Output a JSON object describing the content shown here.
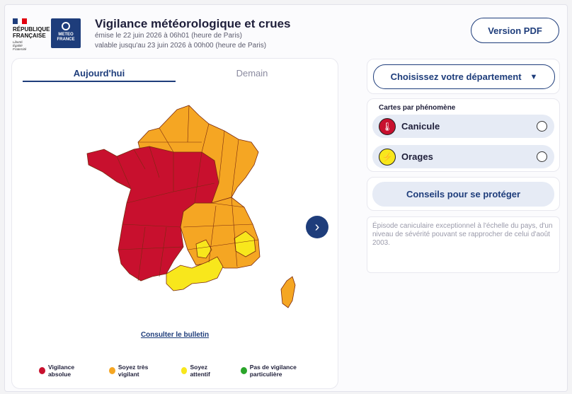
{
  "header": {
    "gov_name_lines": [
      "RÉPUBLIQUE",
      "FRANÇAISE"
    ],
    "gov_motto_lines": [
      "Liberté",
      "Égalité",
      "Fraternité"
    ],
    "mf_lines": [
      "METEO",
      "FRANCE"
    ],
    "title": "Vigilance météorologique et crues",
    "issued": "émise le 22 juin 2026 à 06h01 (heure de Paris)",
    "valid_until": "valable jusqu'au 23 juin 2026 à 00h00 (heure de Paris)",
    "pdf_button": "Version PDF"
  },
  "map_panel": {
    "tabs": [
      {
        "label": "Aujourd'hui",
        "active": true
      },
      {
        "label": "Demain",
        "active": false
      }
    ],
    "next_button_icon": "chevron-right-icon",
    "bulletin_link": "Consulter le bulletin",
    "legend": [
      {
        "label": "Vigilance absolue",
        "color": "#c8102e"
      },
      {
        "label": "Soyez très vigilant",
        "color": "#f5a623"
      },
      {
        "label": "Soyez attentif",
        "color": "#f8e71c"
      },
      {
        "label": "Pas de vigilance particulière",
        "color": "#2aa52a"
      }
    ],
    "zone_colors": {
      "red": "#c8102e",
      "orange": "#f5a623",
      "yellow": "#f8e71c",
      "border": "#7a2a10"
    }
  },
  "sidebar": {
    "department_button": "Choisissez votre département",
    "phenomena_title": "Cartes par phénomène",
    "phenomena": [
      {
        "label": "Canicule",
        "icon": "thermometer-icon",
        "icon_color": "#c8102e"
      },
      {
        "label": "Orages",
        "icon": "lightning-icon",
        "icon_color": "#f8e71c"
      }
    ],
    "advice_button": "Conseils pour se protéger",
    "description": "Épisode caniculaire exceptionnel à l'échelle du pays, d'un niveau de sévérité pouvant se rapprocher de celui d'août 2003."
  },
  "colors": {
    "primary": "#1e3d7b"
  }
}
